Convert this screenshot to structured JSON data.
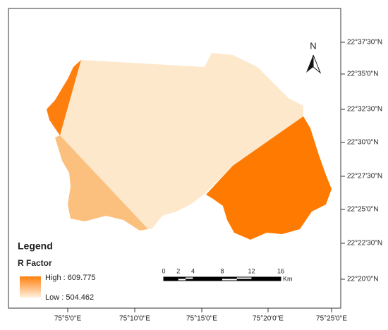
{
  "north": "N",
  "x_labels": [
    "75°5'0\"E",
    "75°10'0\"E",
    "75°15'0\"E",
    "75°20'0\"E",
    "75°25'0\"E"
  ],
  "y_labels": [
    "22°37'30\"N",
    "22°35'0\"N",
    "22°32'30\"N",
    "22°30'0\"N",
    "22°27'30\"N",
    "22°25'0\"N",
    "22°22'30\"N",
    "22°20'0\"N"
  ],
  "legend": {
    "title": "Legend",
    "subtitle": "R Factor",
    "high": "High : 609.775",
    "low": "Low : 504.462"
  },
  "scale": {
    "ticks": [
      0,
      2,
      4,
      8,
      12,
      16
    ],
    "unit": "Km"
  }
}
